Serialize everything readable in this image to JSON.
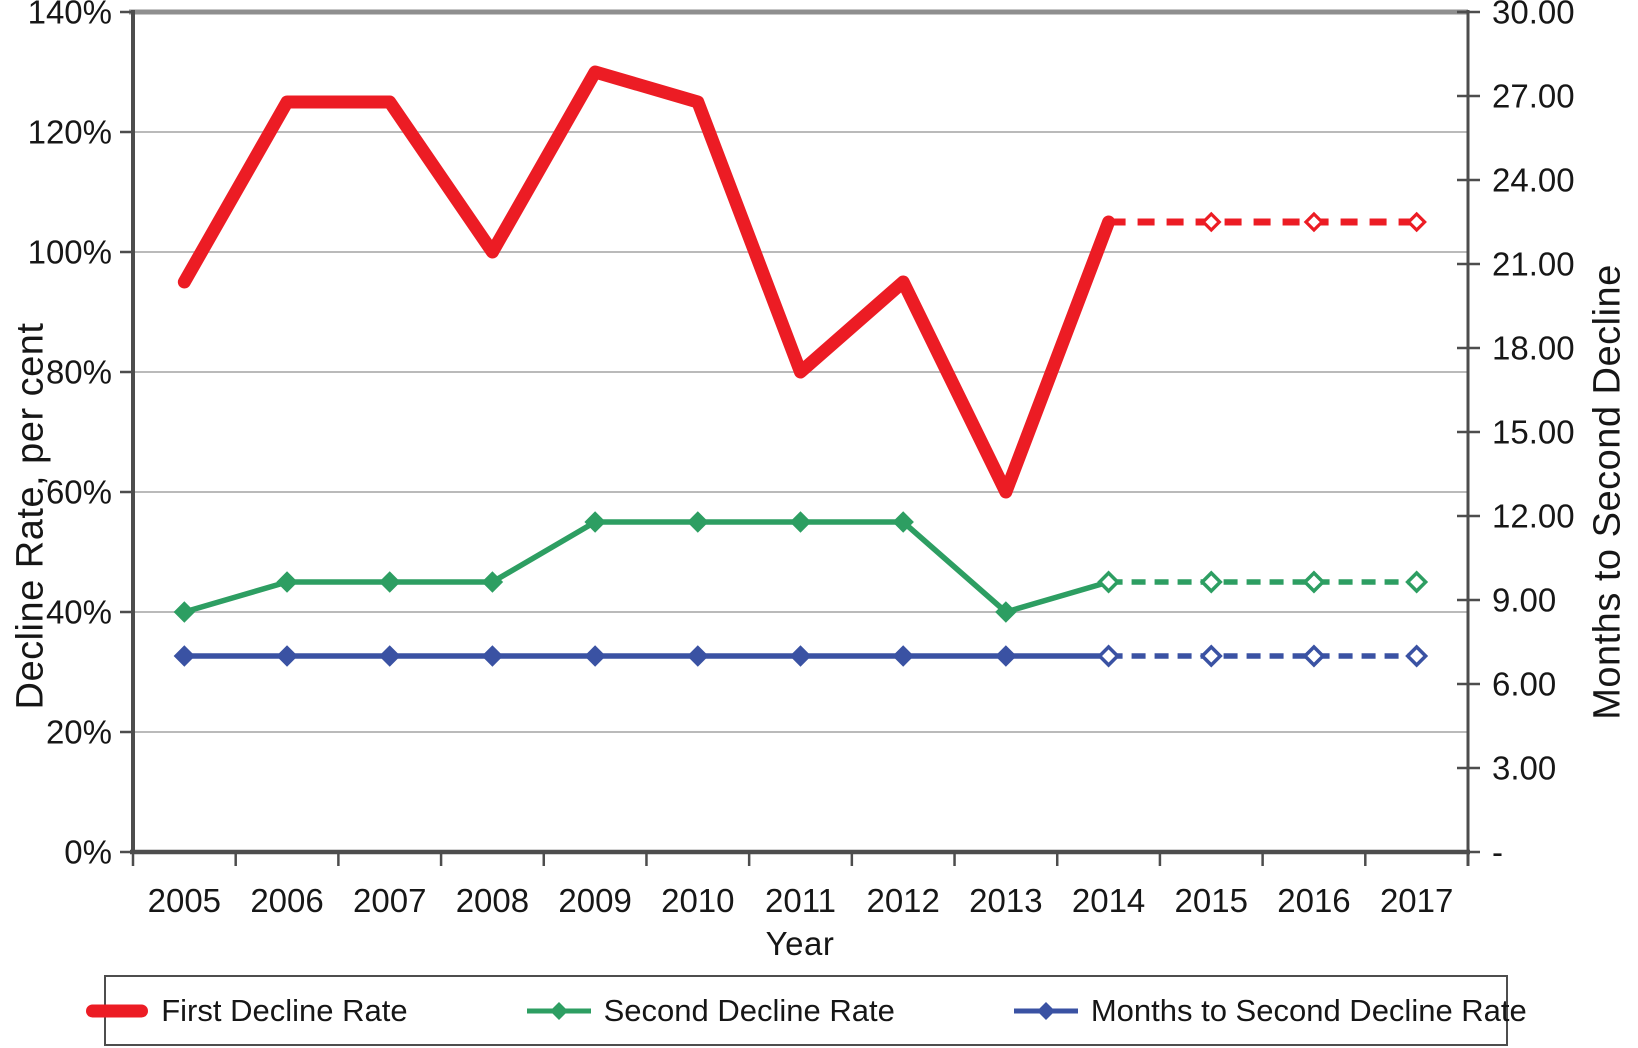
{
  "chart_data": {
    "type": "line",
    "title": "",
    "xlabel": "Year",
    "ylabel_left": "Decline Rate, per cent",
    "ylabel_right": "Months to Second Decline",
    "x": [
      "2005",
      "2006",
      "2007",
      "2008",
      "2009",
      "2010",
      "2011",
      "2012",
      "2013",
      "2014",
      "2015",
      "2016",
      "2017"
    ],
    "left_axis": {
      "min": 0,
      "max": 140,
      "tick_step": 20,
      "tick_labels": [
        "0%",
        "20%",
        "40%",
        "60%",
        "80%",
        "100%",
        "120%",
        "140%"
      ]
    },
    "right_axis": {
      "min": 0,
      "max": 30,
      "tick_step": 3,
      "tick_labels": [
        "-",
        "3.00",
        "6.00",
        "9.00",
        "12.00",
        "15.00",
        "18.00",
        "21.00",
        "24.00",
        "27.00",
        "30.00"
      ]
    },
    "grid": true,
    "legend_position": "bottom",
    "projection_start_year": "2014",
    "series": [
      {
        "name": "First Decline Rate",
        "axis": "left",
        "unit": "percent",
        "color": "#ec1c24",
        "style": "thick-solid-then-dashed",
        "markers": "open-diamond-on-projection",
        "values": [
          95,
          125,
          125,
          100,
          130,
          125,
          80,
          95,
          60,
          105,
          105,
          105,
          105
        ]
      },
      {
        "name": "Second Decline Rate",
        "axis": "left",
        "unit": "percent",
        "color": "#2d9e62",
        "style": "diamond-solid-then-dashed",
        "markers": "filled-diamond-then-open",
        "values": [
          40,
          45,
          45,
          45,
          55,
          55,
          55,
          55,
          40,
          45,
          45,
          45,
          45
        ]
      },
      {
        "name": "Months to Second Decline Rate",
        "axis": "right",
        "unit": "months",
        "color": "#3a52a3",
        "style": "diamond-solid-then-dashed",
        "markers": "filled-diamond-then-open",
        "values": [
          7.0,
          7.0,
          7.0,
          7.0,
          7.0,
          7.0,
          7.0,
          7.0,
          7.0,
          7.0,
          7.0,
          7.0,
          7.0
        ]
      }
    ]
  },
  "legend": {
    "items": [
      {
        "label": "First Decline Rate"
      },
      {
        "label": "Second Decline Rate"
      },
      {
        "label": "Months to Second Decline Rate"
      }
    ]
  }
}
